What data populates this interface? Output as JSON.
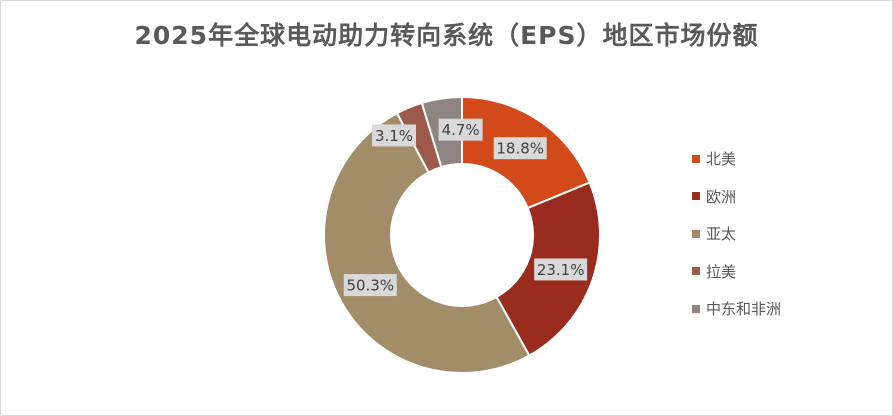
{
  "chart_data": {
    "type": "pie",
    "donut": true,
    "title": "2025年全球电动助力转向系统（EPS）地区市场份额",
    "categories": [
      "北美",
      "欧洲",
      "亚太",
      "拉美",
      "中东和非洲"
    ],
    "values": [
      18.8,
      23.1,
      50.3,
      3.1,
      4.7
    ],
    "labels": [
      "18.8%",
      "23.1%",
      "50.3%",
      "3.1%",
      "4.7%"
    ],
    "colors": [
      "#d24a1a",
      "#9a2b1f",
      "#a38d69",
      "#9c5a4a",
      "#8e8583"
    ],
    "legend_position": "right",
    "start_angle": "12 o'clock",
    "direction": "clockwise"
  }
}
